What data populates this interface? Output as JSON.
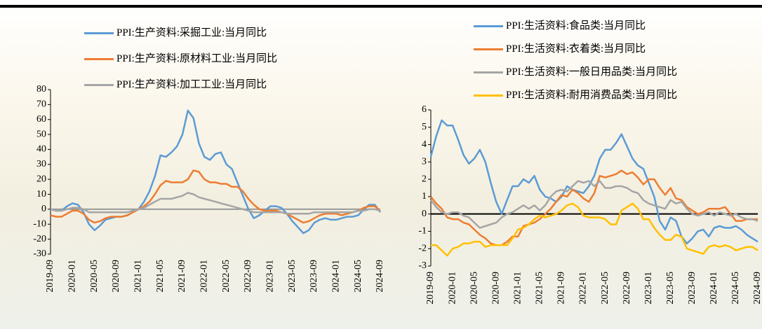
{
  "chart_data": [
    {
      "type": "line",
      "categories": [
        "2019-09",
        null,
        null,
        null,
        "2020-01",
        null,
        null,
        null,
        "2020-05",
        null,
        null,
        null,
        "2020-09",
        null,
        null,
        null,
        "2021-01",
        null,
        null,
        null,
        "2021-05",
        null,
        null,
        null,
        "2021-09",
        null,
        null,
        null,
        "2022-01",
        null,
        null,
        null,
        "2022-05",
        null,
        null,
        null,
        "2022-09",
        null,
        null,
        null,
        "2023-01",
        null,
        null,
        null,
        "2023-05",
        null,
        null,
        null,
        "2023-09",
        null,
        null,
        null,
        "2024-01",
        null,
        null,
        null,
        "2024-05",
        null,
        null,
        null,
        "2024-09"
      ],
      "ylim": [
        -30,
        80
      ],
      "yticks": [
        -30,
        -20,
        -10,
        0,
        10,
        20,
        30,
        40,
        50,
        60,
        70,
        80
      ],
      "series": [
        {
          "name": "PPI:生产资料:采掘工业:当月同比",
          "color": "#5b9bd5",
          "values": [
            0,
            -1,
            -1,
            2,
            4,
            3,
            -2,
            -10,
            -14,
            -11,
            -7,
            -6,
            -5,
            -5,
            -4,
            -2,
            0,
            5,
            12,
            22,
            36,
            35,
            38,
            42,
            50,
            66,
            61,
            44,
            35,
            33,
            37,
            38,
            30,
            27,
            18,
            9,
            0,
            -6,
            -4,
            -1,
            2,
            2,
            1,
            -3,
            -8,
            -12,
            -16,
            -14,
            -9,
            -7,
            -6,
            -7,
            -7,
            -6,
            -5,
            -5,
            -4,
            0,
            3,
            3,
            -2
          ]
        },
        {
          "name": "PPI:生产资料:原材料工业:当月同比",
          "color": "#ed7d31",
          "values": [
            -4,
            -5,
            -5,
            -3,
            -1,
            -1,
            -3,
            -7,
            -9,
            -8,
            -6,
            -5,
            -5,
            -5,
            -4,
            -2,
            0,
            2,
            5,
            10,
            16,
            19,
            18,
            18,
            18,
            20,
            26,
            25,
            20,
            18,
            18,
            17,
            17,
            15,
            15,
            12,
            7,
            3,
            0,
            -1,
            -1,
            -1,
            -2,
            -3,
            -5,
            -7,
            -9,
            -8,
            -6,
            -4,
            -3,
            -3,
            -3,
            -4,
            -3,
            -2,
            -1,
            1,
            2,
            2,
            -1
          ]
        },
        {
          "name": "PPI:生产资料:加工工业:当月同比",
          "color": "#a5a5a5",
          "values": [
            0,
            -1,
            -1,
            0,
            1,
            1,
            0,
            -2,
            -2,
            -2,
            -2,
            -2,
            -2,
            -2,
            -2,
            -1,
            0,
            1,
            3,
            5,
            7,
            7,
            7,
            8,
            9,
            11,
            10,
            8,
            7,
            6,
            5,
            4,
            3,
            2,
            1,
            0,
            -1,
            -2,
            -2,
            -2,
            -2,
            -2,
            -2,
            -3,
            -3,
            -3,
            -3,
            -3,
            -2,
            -2,
            -2,
            -2,
            -2,
            -2,
            -2,
            -2,
            -1,
            -1,
            0,
            0,
            -1
          ]
        }
      ]
    },
    {
      "type": "line",
      "categories": [
        "2019-09",
        null,
        null,
        null,
        "2020-01",
        null,
        null,
        null,
        "2020-05",
        null,
        null,
        null,
        "2020-09",
        null,
        null,
        null,
        "2021-01",
        null,
        null,
        null,
        "2021-05",
        null,
        null,
        null,
        "2021-09",
        null,
        null,
        null,
        "2022-01",
        null,
        null,
        null,
        "2022-05",
        null,
        null,
        null,
        "2022-09",
        null,
        null,
        null,
        "2023-01",
        null,
        null,
        null,
        "2023-05",
        null,
        null,
        null,
        "2023-09",
        null,
        null,
        null,
        "2024-01",
        null,
        null,
        null,
        "2024-05",
        null,
        null,
        null,
        "2024-09"
      ],
      "ylim": [
        -3,
        6
      ],
      "yticks": [
        -3,
        -2,
        -1,
        0,
        1,
        2,
        3,
        4,
        5,
        6
      ],
      "series": [
        {
          "name": "PPI:生活资料:食品类:当月同比",
          "color": "#5b9bd5",
          "values": [
            3.3,
            4.5,
            5.4,
            5.1,
            5.1,
            4.3,
            3.4,
            2.9,
            3.2,
            3.7,
            3.0,
            1.8,
            0.7,
            0.0,
            0.8,
            1.6,
            1.6,
            2.0,
            1.8,
            2.2,
            1.4,
            1.0,
            0.9,
            0.7,
            1.0,
            1.6,
            1.4,
            1.3,
            1.2,
            1.6,
            2.2,
            3.2,
            3.7,
            3.7,
            4.1,
            4.6,
            3.9,
            3.2,
            2.8,
            2.6,
            1.8,
            1.0,
            -0.4,
            -0.9,
            -0.2,
            -0.4,
            -1.3,
            -1.7,
            -1.4,
            -1.0,
            -0.9,
            -1.3,
            -0.8,
            -0.7,
            -0.8,
            -0.8,
            -0.7,
            -0.9,
            -1.2,
            -1.4,
            -1.6
          ]
        },
        {
          "name": "PPI:生活资料:衣着类:当月同比",
          "color": "#ed7d31",
          "values": [
            1.0,
            0.6,
            0.3,
            -0.2,
            -0.3,
            -0.3,
            -0.5,
            -0.6,
            -0.9,
            -1.2,
            -1.4,
            -1.7,
            -1.8,
            -1.8,
            -1.6,
            -1.3,
            -1.3,
            -0.7,
            -0.6,
            -0.5,
            -0.3,
            0.0,
            0.3,
            0.7,
            1.1,
            1.0,
            1.4,
            1.2,
            0.9,
            0.7,
            1.2,
            2.2,
            2.1,
            2.2,
            2.3,
            2.5,
            2.3,
            2.4,
            2.1,
            1.7,
            2.0,
            2.0,
            1.5,
            1.1,
            1.5,
            0.9,
            0.8,
            0.4,
            0.2,
            0.0,
            0.1,
            0.3,
            0.3,
            0.3,
            0.4,
            0.0,
            -0.4,
            -0.4,
            -0.3,
            -0.3,
            -0.3
          ]
        },
        {
          "name": "PPI:生活资料:一般日用品类:当月同比",
          "color": "#a5a5a5",
          "values": [
            0.8,
            0.4,
            0.1,
            0.0,
            0.1,
            0.1,
            -0.1,
            -0.2,
            -0.5,
            -0.8,
            -0.7,
            -0.6,
            -0.5,
            -0.2,
            0.0,
            0.1,
            0.3,
            0.5,
            0.3,
            0.5,
            0.2,
            0.5,
            1.0,
            1.3,
            1.4,
            1.3,
            1.6,
            1.9,
            1.8,
            1.9,
            1.6,
            1.9,
            1.5,
            1.5,
            1.6,
            1.6,
            1.5,
            1.3,
            1.2,
            0.8,
            0.6,
            0.5,
            0.4,
            0.3,
            0.8,
            0.6,
            0.7,
            0.3,
            0.0,
            -0.1,
            0.0,
            0.1,
            -0.1,
            0.1,
            0.0,
            -0.1,
            0.0,
            -0.2,
            -0.3,
            -0.3,
            -0.4
          ]
        },
        {
          "name": "PPI:生活资料:耐用消费品类:当月同比",
          "color": "#ffc000",
          "values": [
            -1.8,
            -1.8,
            -2.1,
            -2.4,
            -2.0,
            -1.9,
            -1.7,
            -1.7,
            -1.6,
            -1.6,
            -1.9,
            -1.8,
            -1.8,
            -1.8,
            -1.8,
            -1.4,
            -0.9,
            -0.8,
            -0.6,
            -0.3,
            -0.1,
            -0.2,
            -0.1,
            0.0,
            0.2,
            0.5,
            0.6,
            0.4,
            -0.1,
            -0.2,
            -0.2,
            -0.2,
            -0.3,
            -0.6,
            -0.6,
            0.2,
            0.4,
            0.6,
            0.3,
            -0.3,
            -0.3,
            -0.8,
            -1.2,
            -1.5,
            -1.5,
            -1.2,
            -1.3,
            -2.0,
            -2.1,
            -2.2,
            -2.3,
            -1.9,
            -1.8,
            -1.9,
            -1.8,
            -1.9,
            -2.1,
            -2.0,
            -1.9,
            -1.9,
            -2.1
          ]
        }
      ]
    }
  ]
}
